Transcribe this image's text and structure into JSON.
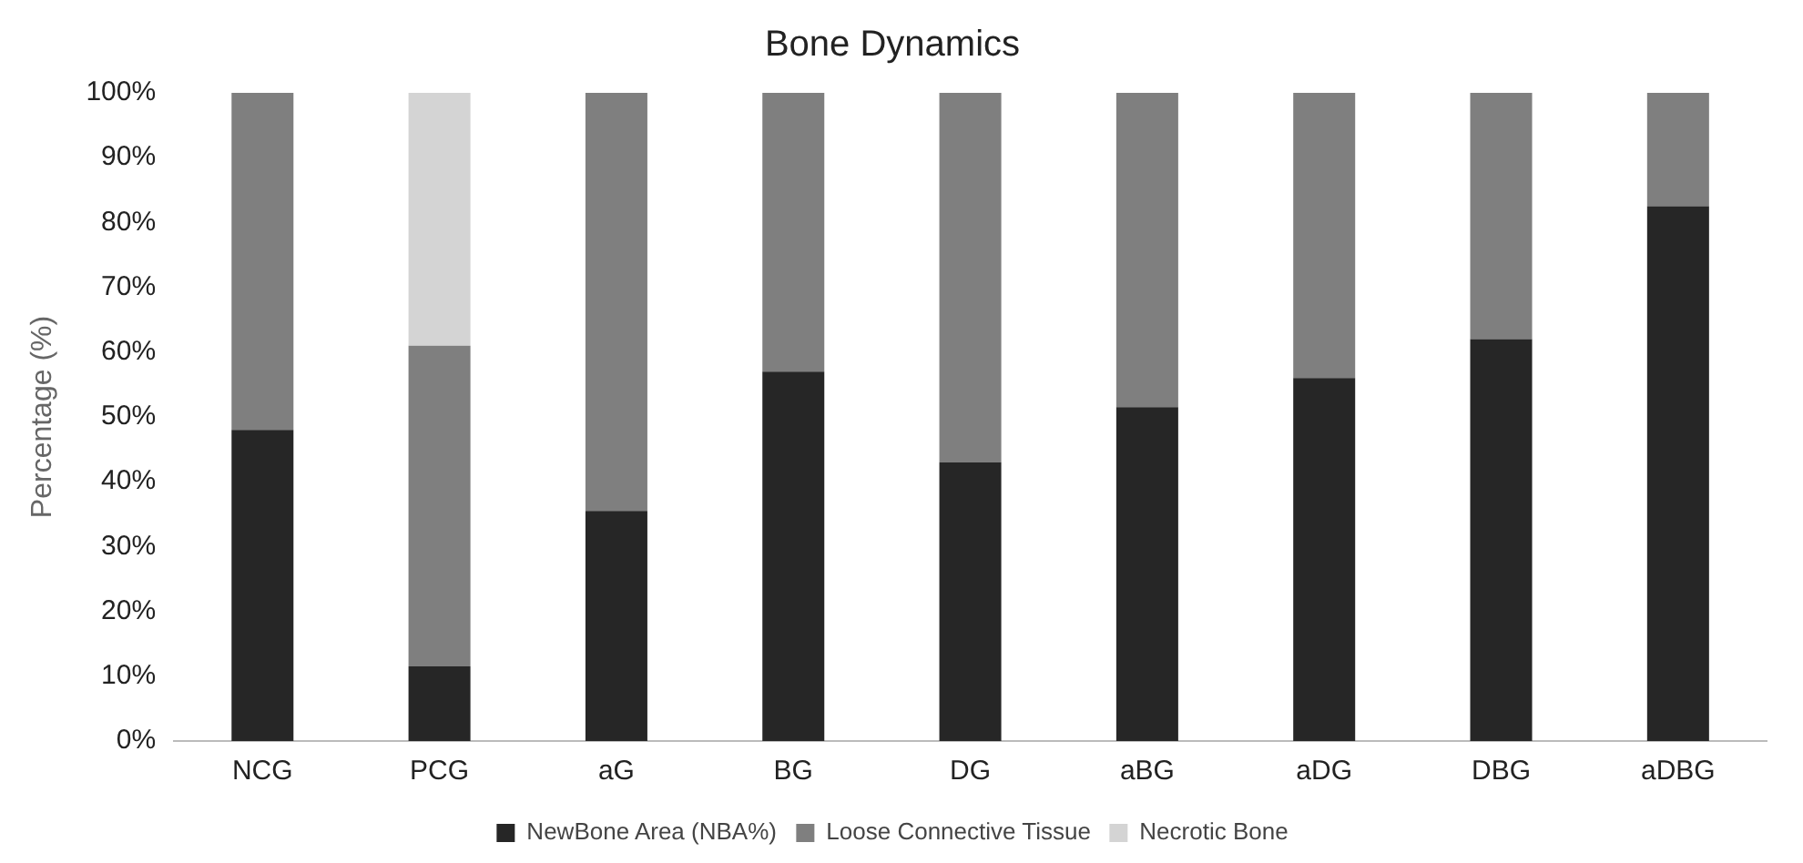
{
  "chart_data": {
    "type": "bar",
    "title": "Bone Dynamics",
    "ylabel": "Percentage (%)",
    "stacked": true,
    "categories": [
      "NCG",
      "PCG",
      "aG",
      "BG",
      "DG",
      "aBG",
      "aDG",
      "DBG",
      "aDBG"
    ],
    "series": [
      {
        "name": "NewBone Area (NBA%)",
        "color": "#262626",
        "values": [
          48,
          11.5,
          35.5,
          57,
          43,
          51.5,
          56,
          62,
          82.5
        ]
      },
      {
        "name": "Loose Connective Tissue",
        "color": "#7f7f7f",
        "values": [
          52,
          49.5,
          64.5,
          43,
          57,
          48.5,
          44,
          38,
          17.5
        ]
      },
      {
        "name": "Necrotic Bone",
        "color": "#d4d4d4",
        "values": [
          0,
          39,
          0,
          0,
          0,
          0,
          0,
          0,
          0
        ]
      }
    ],
    "ylim": [
      0,
      100
    ],
    "yticks": [
      {
        "value": 0,
        "label": "0%"
      },
      {
        "value": 10,
        "label": "10%"
      },
      {
        "value": 20,
        "label": "20%"
      },
      {
        "value": 30,
        "label": "30%"
      },
      {
        "value": 40,
        "label": "40%"
      },
      {
        "value": 50,
        "label": "50%"
      },
      {
        "value": 60,
        "label": "60%"
      },
      {
        "value": 70,
        "label": "70%"
      },
      {
        "value": 80,
        "label": "80%"
      },
      {
        "value": 90,
        "label": "90%"
      },
      {
        "value": 100,
        "label": "100%"
      }
    ],
    "grid": false,
    "legend": "bottom"
  }
}
